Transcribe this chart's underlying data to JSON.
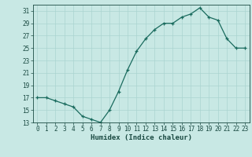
{
  "x": [
    0,
    1,
    2,
    3,
    4,
    5,
    6,
    7,
    8,
    9,
    10,
    11,
    12,
    13,
    14,
    15,
    16,
    17,
    18,
    19,
    20,
    21,
    22,
    23
  ],
  "y": [
    17,
    17,
    16.5,
    16,
    15.5,
    14,
    13.5,
    13,
    15,
    18,
    21.5,
    24.5,
    26.5,
    28,
    29,
    29,
    30,
    30.5,
    31.5,
    30,
    29.5,
    26.5,
    25,
    25
  ],
  "line_color": "#1a6b5e",
  "bg_color": "#c8e8e4",
  "grid_color": "#aad4d0",
  "text_color": "#1a4a42",
  "xlabel": "Humidex (Indice chaleur)",
  "ylim": [
    13,
    32
  ],
  "xlim": [
    -0.5,
    23.5
  ],
  "yticks": [
    13,
    15,
    17,
    19,
    21,
    23,
    25,
    27,
    29,
    31
  ],
  "xticks": [
    0,
    1,
    2,
    3,
    4,
    5,
    6,
    7,
    8,
    9,
    10,
    11,
    12,
    13,
    14,
    15,
    16,
    17,
    18,
    19,
    20,
    21,
    22,
    23
  ],
  "tick_fontsize": 5.5,
  "label_fontsize": 6.5
}
